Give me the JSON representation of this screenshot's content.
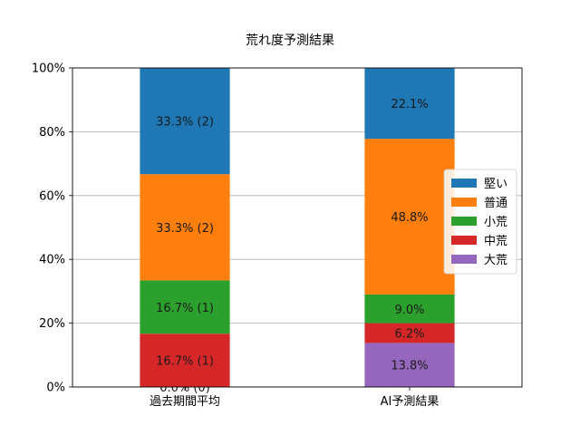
{
  "chart_data": {
    "type": "bar",
    "stacked": true,
    "title": "荒れ度予測結果",
    "categories": [
      "過去期間平均",
      "AI予測結果"
    ],
    "ylim": [
      0,
      100
    ],
    "yticks": [
      "0%",
      "20%",
      "40%",
      "60%",
      "80%",
      "100%"
    ],
    "grid": "horizontal",
    "legend_position": "right",
    "series": [
      {
        "name": "大荒",
        "color": "#9467bd",
        "values": [
          0.0,
          13.8
        ],
        "labels": [
          "0.0% (0)",
          "13.8%"
        ]
      },
      {
        "name": "中荒",
        "color": "#d62728",
        "values": [
          16.7,
          6.2
        ],
        "labels": [
          "16.7% (1)",
          "6.2%"
        ]
      },
      {
        "name": "小荒",
        "color": "#2ca02c",
        "values": [
          16.7,
          9.0
        ],
        "labels": [
          "16.7% (1)",
          "9.0%"
        ]
      },
      {
        "name": "普通",
        "color": "#ff7f0e",
        "values": [
          33.3,
          48.8
        ],
        "labels": [
          "33.3% (2)",
          "48.8%"
        ]
      },
      {
        "name": "堅い",
        "color": "#1f77b4",
        "values": [
          33.3,
          22.1
        ],
        "labels": [
          "33.3% (2)",
          "22.1%"
        ]
      }
    ],
    "legend_order": [
      "堅い",
      "普通",
      "小荒",
      "中荒",
      "大荒"
    ]
  }
}
